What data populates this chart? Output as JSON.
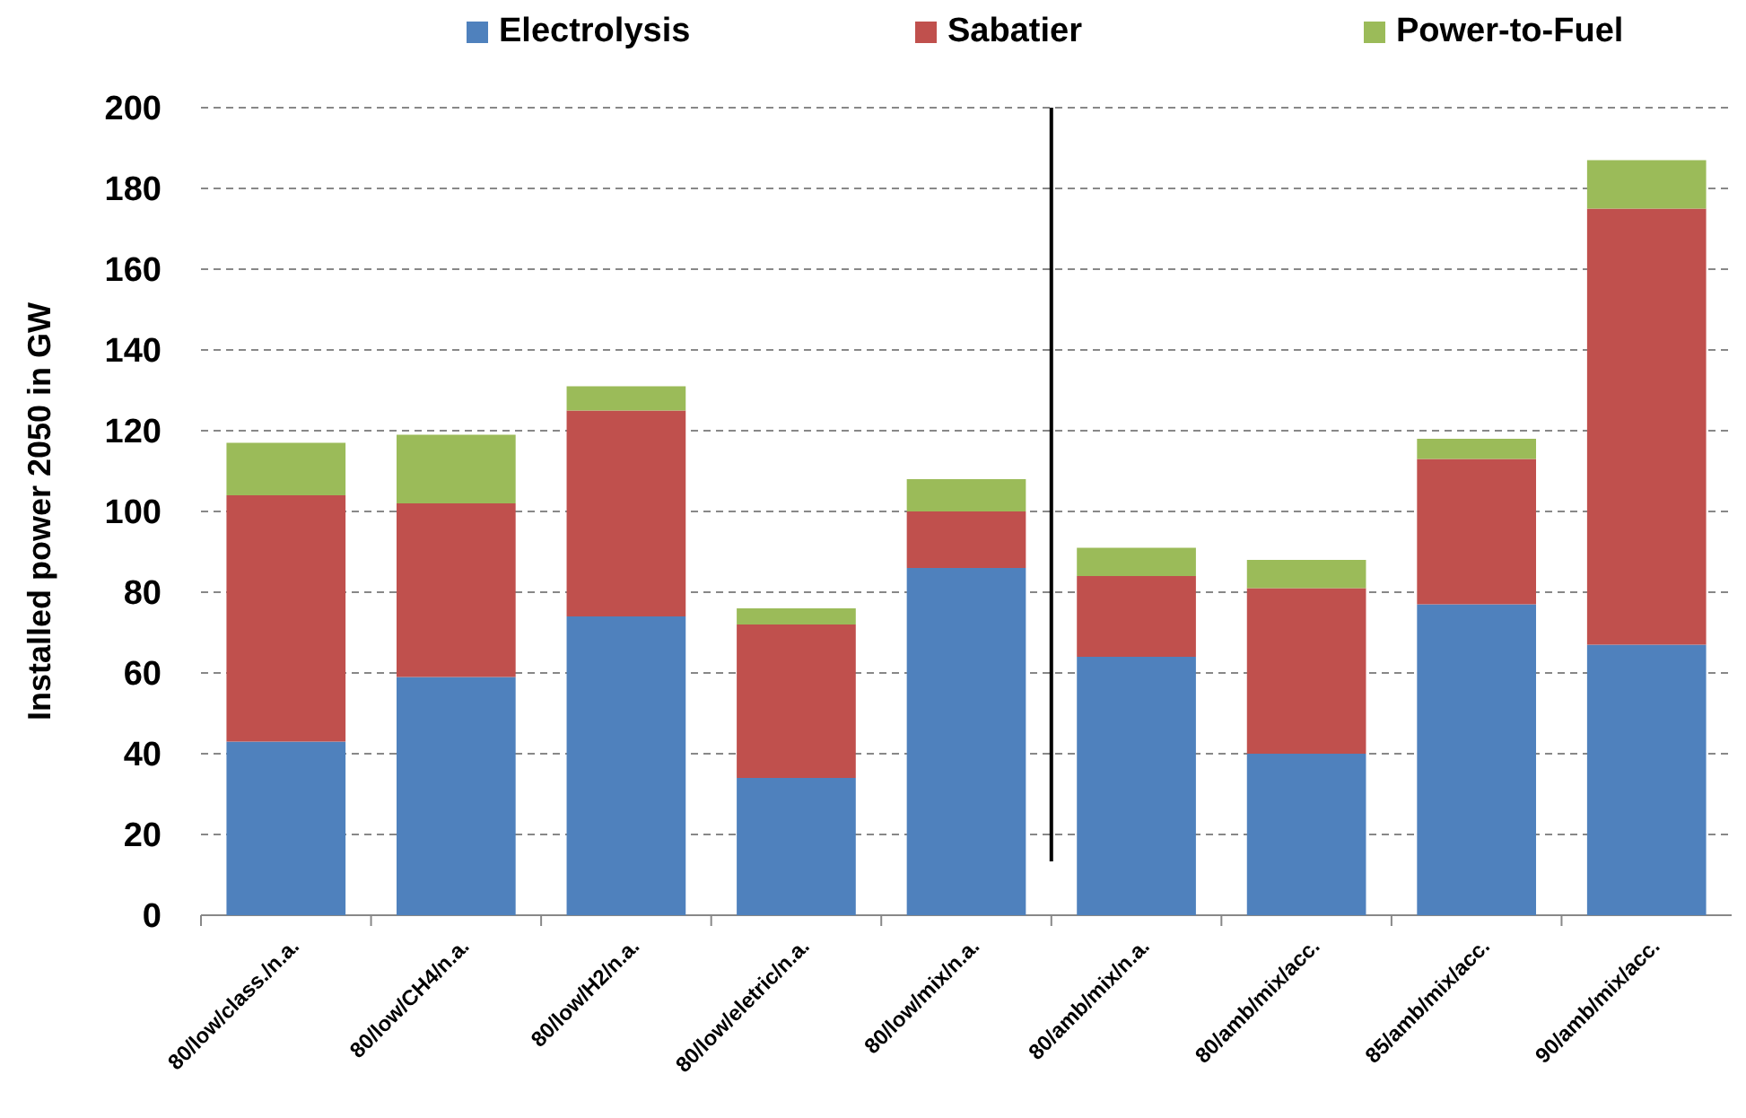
{
  "chart_data": {
    "type": "bar",
    "stacked": true,
    "ylabel": "Installed power  2050 in GW",
    "categories": [
      "80/low/class./n.a.",
      "80/low/CH4/n.a.",
      "80/low/H2/n.a.",
      "80/low/eletric/n.a.",
      "80/low/mix/n.a.",
      "80/amb/mix/n.a.",
      "80/amb/mix/acc.",
      "85/amb/mix/acc.",
      "90/amb/mix/acc."
    ],
    "series": [
      {
        "name": "Electrolysis",
        "color": "#4f81bd",
        "values": [
          43,
          59,
          74,
          34,
          86,
          64,
          40,
          77,
          67
        ]
      },
      {
        "name": "Sabatier",
        "color": "#c0504d",
        "values": [
          61,
          43,
          51,
          38,
          14,
          20,
          41,
          36,
          108
        ]
      },
      {
        "name": "Power-to-Fuel",
        "color": "#9bbb59",
        "values": [
          13,
          17,
          6,
          4,
          8,
          7,
          7,
          5,
          12
        ]
      }
    ],
    "ylim": [
      0,
      200
    ],
    "yticks": [
      0,
      20,
      40,
      60,
      80,
      100,
      120,
      140,
      160,
      180,
      200
    ],
    "grid": "y",
    "legend": "top",
    "ref_lines": [
      {
        "axis": "x",
        "value": "80/amb/mix/n.a.",
        "color": "#000000"
      }
    ]
  }
}
